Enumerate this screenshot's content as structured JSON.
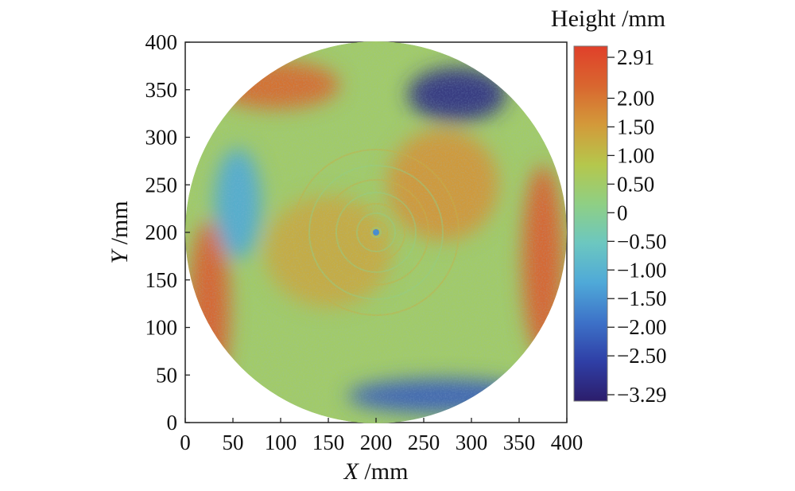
{
  "chart_data": {
    "type": "heatmap",
    "title": "",
    "xlabel": {
      "var": "X",
      "unit": " /mm"
    },
    "ylabel": {
      "var": "Y",
      "unit": " /mm"
    },
    "xlim": [
      0,
      400
    ],
    "ylim": [
      0,
      400
    ],
    "xticks": [
      0,
      50,
      100,
      150,
      200,
      250,
      300,
      350,
      400
    ],
    "yticks": [
      0,
      50,
      100,
      150,
      200,
      250,
      300,
      350,
      400
    ],
    "grid": false,
    "colorbar": {
      "label": "Height /mm",
      "min": -3.29,
      "max": 2.91,
      "ticks": [
        {
          "value": 2.91,
          "label": "2.91"
        },
        {
          "value": 2.0,
          "label": "2.00"
        },
        {
          "value": 1.5,
          "label": "1.50"
        },
        {
          "value": 1.0,
          "label": "1.00"
        },
        {
          "value": 0.5,
          "label": "0.50"
        },
        {
          "value": 0.0,
          "label": "0"
        },
        {
          "value": -0.5,
          "label": "−0.50"
        },
        {
          "value": -1.0,
          "label": "−1.00"
        },
        {
          "value": -1.5,
          "label": "−1.50"
        },
        {
          "value": -2.0,
          "label": "−2.00"
        },
        {
          "value": -2.5,
          "label": "−2.50"
        },
        {
          "value": -3.29,
          "label": "−3.29"
        }
      ],
      "colors": [
        "#2c1d6b",
        "#2f3fa6",
        "#3d72c8",
        "#4fa9d8",
        "#6cc7c0",
        "#8fcf84",
        "#b5c74c",
        "#d39a3a",
        "#d9662f",
        "#e0402a"
      ]
    },
    "surface": {
      "shape": "circular aperture",
      "center": [
        200,
        200
      ],
      "radius": 200,
      "base_value": 0.5,
      "features": [
        {
          "desc": "depression upper-right",
          "x": 285,
          "y": 345,
          "value": -3.0
        },
        {
          "desc": "low band near bottom",
          "x": 270,
          "y": 28,
          "value": -2.2
        },
        {
          "desc": "raised rim right",
          "x": 375,
          "y": 170,
          "value": 2.4
        },
        {
          "desc": "raised rim left",
          "x": 25,
          "y": 120,
          "value": 2.4
        },
        {
          "desc": "raised rim upper-left",
          "x": 95,
          "y": 355,
          "value": 2.2
        },
        {
          "desc": "raised region center-right",
          "x": 270,
          "y": 250,
          "value": 1.6
        },
        {
          "desc": "raised region center-left",
          "x": 150,
          "y": 180,
          "value": 1.3
        },
        {
          "desc": "low region left",
          "x": 55,
          "y": 230,
          "value": -1.2
        }
      ]
    }
  }
}
